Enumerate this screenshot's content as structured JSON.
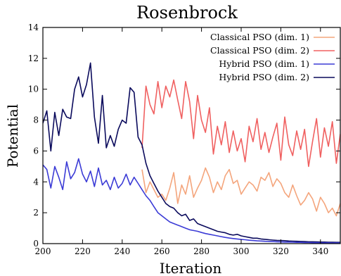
{
  "chart_data": {
    "type": "line",
    "title": "Rosenbrock",
    "xlabel": "Iteration",
    "ylabel": "Potential",
    "xlim": [
      200,
      350
    ],
    "ylim": [
      0,
      14
    ],
    "x_ticks": [
      200,
      220,
      240,
      260,
      280,
      300,
      320,
      340
    ],
    "y_ticks": [
      0,
      2,
      4,
      6,
      8,
      10,
      12,
      14
    ],
    "grid": false,
    "legend_position": "top-right",
    "series": [
      {
        "name": "Classical PSO (dim. 1)",
        "color": "#f4a57c",
        "x": [
          250,
          252,
          254,
          256,
          258,
          260,
          262,
          264,
          266,
          268,
          270,
          272,
          274,
          276,
          278,
          280,
          282,
          284,
          286,
          288,
          290,
          292,
          294,
          296,
          298,
          300,
          302,
          304,
          306,
          308,
          310,
          312,
          314,
          316,
          318,
          320,
          322,
          324,
          326,
          328,
          330,
          332,
          334,
          336,
          338,
          340,
          342,
          344,
          346,
          348,
          350
        ],
        "y": [
          4.8,
          3.3,
          4.0,
          3.5,
          3.0,
          3.2,
          2.8,
          3.6,
          4.6,
          2.6,
          3.8,
          3.2,
          4.4,
          3.0,
          3.6,
          4.1,
          4.9,
          4.3,
          3.3,
          4.0,
          3.5,
          4.4,
          4.8,
          3.9,
          4.1,
          3.2,
          3.6,
          4.0,
          3.8,
          3.4,
          4.3,
          4.1,
          4.6,
          3.7,
          4.2,
          3.9,
          3.3,
          3.0,
          3.8,
          3.1,
          2.5,
          2.8,
          3.3,
          2.9,
          2.1,
          3.0,
          2.6,
          2.0,
          2.3,
          1.8,
          2.6
        ]
      },
      {
        "name": "Classical PSO (dim. 2)",
        "color": "#f06060",
        "x": [
          250,
          252,
          254,
          256,
          258,
          260,
          262,
          264,
          266,
          268,
          270,
          272,
          274,
          276,
          278,
          280,
          282,
          284,
          286,
          288,
          290,
          292,
          294,
          296,
          298,
          300,
          302,
          304,
          306,
          308,
          310,
          312,
          314,
          316,
          318,
          320,
          322,
          324,
          326,
          328,
          330,
          332,
          334,
          336,
          338,
          340,
          342,
          344,
          346,
          348,
          350
        ],
        "y": [
          6.2,
          10.2,
          9.0,
          8.4,
          10.5,
          8.8,
          10.2,
          9.5,
          10.6,
          9.3,
          8.1,
          10.5,
          9.2,
          6.8,
          9.6,
          8.0,
          7.2,
          8.8,
          5.8,
          7.6,
          6.4,
          7.9,
          5.9,
          7.3,
          6.0,
          6.8,
          5.3,
          7.6,
          6.6,
          8.1,
          6.1,
          7.2,
          5.9,
          6.9,
          7.8,
          5.4,
          8.2,
          6.4,
          5.7,
          7.3,
          6.1,
          7.4,
          5.0,
          6.6,
          8.1,
          5.6,
          7.5,
          6.3,
          7.9,
          5.2,
          7.1
        ]
      },
      {
        "name": "Hybrid PSO (dim. 1)",
        "color": "#3b3bd6",
        "x": [
          200,
          202,
          204,
          206,
          208,
          210,
          212,
          214,
          216,
          218,
          220,
          222,
          224,
          226,
          228,
          230,
          232,
          234,
          236,
          238,
          240,
          242,
          244,
          246,
          248,
          250,
          252,
          254,
          256,
          258,
          260,
          262,
          264,
          266,
          268,
          270,
          272,
          274,
          276,
          278,
          280,
          282,
          284,
          286,
          288,
          290,
          292,
          294,
          296,
          298,
          300,
          302,
          304,
          306,
          308,
          310,
          312,
          314,
          316,
          318,
          320,
          322,
          324,
          326,
          328,
          330,
          332,
          334,
          336,
          338,
          340,
          342,
          344,
          346,
          348,
          350
        ],
        "y": [
          5.1,
          4.8,
          3.6,
          5.0,
          4.3,
          3.5,
          5.3,
          4.2,
          4.6,
          5.5,
          4.5,
          4.0,
          4.7,
          3.7,
          4.9,
          3.8,
          4.1,
          3.5,
          4.3,
          3.6,
          3.9,
          4.5,
          3.8,
          4.3,
          3.9,
          3.5,
          3.1,
          2.8,
          2.4,
          2.0,
          1.8,
          1.6,
          1.4,
          1.3,
          1.2,
          1.1,
          1.0,
          0.9,
          0.85,
          0.8,
          0.72,
          0.65,
          0.6,
          0.55,
          0.5,
          0.45,
          0.4,
          0.36,
          0.33,
          0.3,
          0.27,
          0.25,
          0.22,
          0.2,
          0.18,
          0.17,
          0.15,
          0.14,
          0.13,
          0.12,
          0.11,
          0.1,
          0.1,
          0.09,
          0.08,
          0.08,
          0.07,
          0.07,
          0.06,
          0.06,
          0.05,
          0.05,
          0.05,
          0.04,
          0.04,
          0.04
        ]
      },
      {
        "name": "Hybrid PSO (dim. 2)",
        "color": "#0a0a5c",
        "x": [
          200,
          202,
          204,
          206,
          208,
          210,
          212,
          214,
          216,
          218,
          220,
          222,
          224,
          226,
          228,
          230,
          232,
          234,
          236,
          238,
          240,
          242,
          244,
          246,
          248,
          250,
          252,
          254,
          256,
          258,
          260,
          262,
          264,
          266,
          268,
          270,
          272,
          274,
          276,
          278,
          280,
          282,
          284,
          286,
          288,
          290,
          292,
          294,
          296,
          298,
          300,
          302,
          304,
          306,
          308,
          310,
          312,
          314,
          316,
          318,
          320,
          322,
          324,
          326,
          328,
          330,
          332,
          334,
          336,
          338,
          340,
          342,
          344,
          346,
          348,
          350
        ],
        "y": [
          7.8,
          8.6,
          6.0,
          8.5,
          7.0,
          8.7,
          8.2,
          8.1,
          10.0,
          10.8,
          9.5,
          10.3,
          11.7,
          8.2,
          6.5,
          9.6,
          6.2,
          7.0,
          6.3,
          7.4,
          8.0,
          7.8,
          10.1,
          9.8,
          6.9,
          6.4,
          5.2,
          4.4,
          3.9,
          3.4,
          3.0,
          2.6,
          2.4,
          2.3,
          2.0,
          1.8,
          1.9,
          1.5,
          1.6,
          1.3,
          1.2,
          1.1,
          1.0,
          0.9,
          0.8,
          0.75,
          0.7,
          0.6,
          0.55,
          0.6,
          0.5,
          0.45,
          0.4,
          0.35,
          0.35,
          0.3,
          0.28,
          0.25,
          0.23,
          0.21,
          0.2,
          0.19,
          0.17,
          0.16,
          0.15,
          0.14,
          0.13,
          0.12,
          0.12,
          0.11,
          0.1,
          0.1,
          0.09,
          0.09,
          0.08,
          0.08
        ]
      }
    ]
  }
}
